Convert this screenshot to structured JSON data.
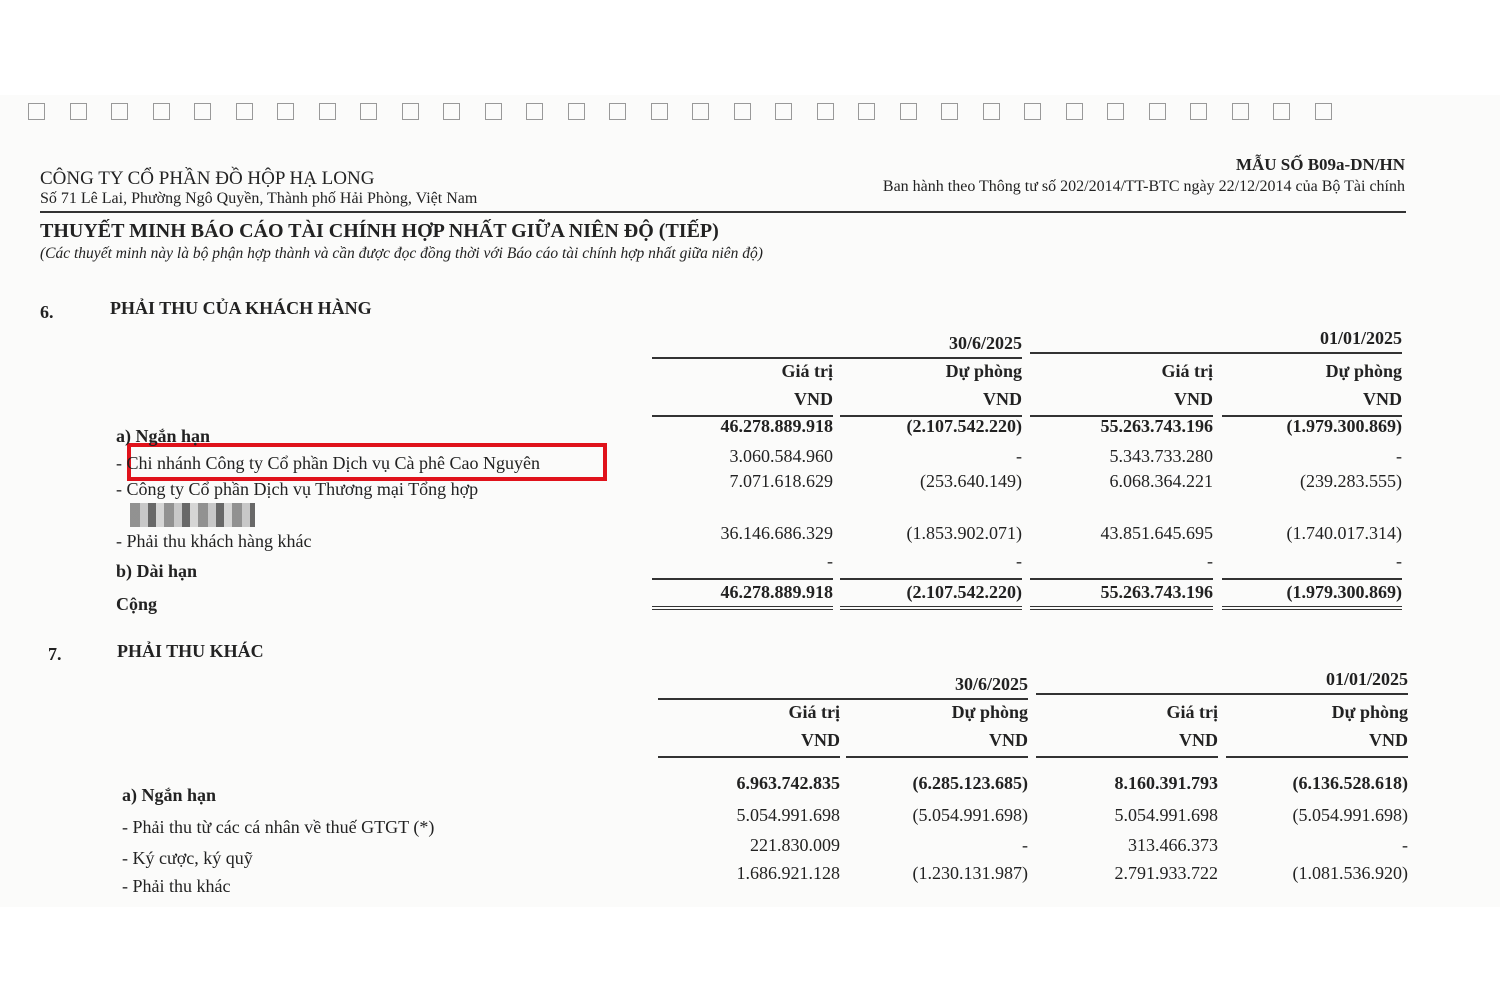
{
  "header": {
    "company": "CÔNG TY CỔ PHẦN ĐỒ HỘP HẠ LONG",
    "address": "Số 71 Lê Lai, Phường Ngô Quyền, Thành phố Hải Phòng, Việt Nam",
    "form_code": "MẪU SỐ B09a-DN/HN",
    "issued_by": "Ban hành theo Thông tư số 202/2014/TT-BTC ngày 22/12/2014 của Bộ Tài chính",
    "title": "THUYẾT MINH BÁO CÁO TÀI CHÍNH HỢP NHẤT GIỮA NIÊN ĐỘ (TIẾP)",
    "subtitle": "(Các thuyết minh này là bộ phận hợp thành và cần được đọc đồng thời với Báo cáo tài chính hợp nhất giữa niên độ)"
  },
  "highlight_color": "#e0121b",
  "columns": {
    "date1": "30/6/2025",
    "date2": "01/01/2025",
    "value": "Giá trị",
    "provision": "Dự phòng",
    "unit": "VND"
  },
  "section6": {
    "number": "6.",
    "title": "PHẢI THU CỦA KHÁCH HÀNG",
    "rows": [
      {
        "label": "a) Ngắn hạn",
        "v": [
          "46.278.889.918",
          "(2.107.542.220)",
          "55.263.743.196",
          "(1.979.300.869)"
        ]
      },
      {
        "label": "-  Chi nhánh Công ty Cổ phần Dịch vụ Cà phê Cao Nguyên",
        "v": [
          "3.060.584.960",
          "-",
          "5.343.733.280",
          "-"
        ]
      },
      {
        "label": "-  Công ty Cổ phần Dịch vụ Thương mại Tổng hợp",
        "v": [
          "7.071.618.629",
          "(253.640.149)",
          "6.068.364.221",
          "(239.283.555)"
        ]
      },
      {
        "label": "-  Phải thu khách hàng khác",
        "v": [
          "36.146.686.329",
          "(1.853.902.071)",
          "43.851.645.695",
          "(1.740.017.314)"
        ]
      },
      {
        "label": "b) Dài hạn",
        "v": [
          "-",
          "-",
          "-",
          "-"
        ]
      },
      {
        "label": "Cộng",
        "v": [
          "46.278.889.918",
          "(2.107.542.220)",
          "55.263.743.196",
          "(1.979.300.869)"
        ]
      }
    ]
  },
  "section7": {
    "number": "7.",
    "title": "PHẢI THU KHÁC",
    "rows": [
      {
        "label": "a) Ngắn hạn",
        "v": [
          "6.963.742.835",
          "(6.285.123.685)",
          "8.160.391.793",
          "(6.136.528.618)"
        ]
      },
      {
        "label": "-  Phải thu từ các cá nhân về thuế GTGT (*)",
        "v": [
          "5.054.991.698",
          "(5.054.991.698)",
          "5.054.991.698",
          "(5.054.991.698)"
        ]
      },
      {
        "label": "-  Ký cược, ký quỹ",
        "v": [
          "221.830.009",
          "-",
          "313.466.373",
          "-"
        ]
      },
      {
        "label": "-  Phải thu khác",
        "v": [
          "1.686.921.128",
          "(1.230.131.987)",
          "2.791.933.722",
          "(1.081.536.920)"
        ]
      }
    ]
  }
}
